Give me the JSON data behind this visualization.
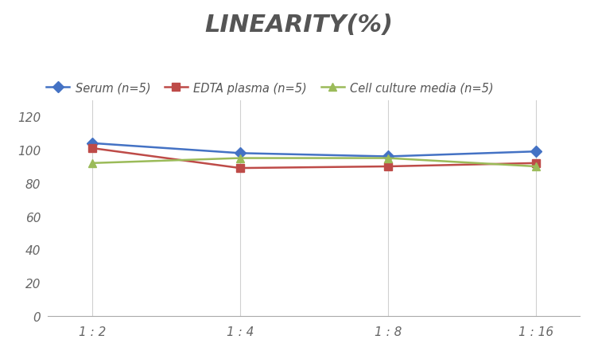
{
  "title": "LINEARITY(%)",
  "x_labels": [
    "1 : 2",
    "1 : 4",
    "1 : 8",
    "1 : 16"
  ],
  "series": [
    {
      "name": "Serum (n=5)",
      "values": [
        104,
        98,
        96,
        99
      ],
      "color": "#4472C4",
      "marker": "D",
      "marker_color": "#4472C4"
    },
    {
      "name": "EDTA plasma (n=5)",
      "values": [
        101,
        89,
        90,
        92
      ],
      "color": "#BE4B48",
      "marker": "s",
      "marker_color": "#BE4B48"
    },
    {
      "name": "Cell culture media (n=5)",
      "values": [
        92,
        95,
        95,
        90
      ],
      "color": "#9BBB59",
      "marker": "^",
      "marker_color": "#9BBB59"
    }
  ],
  "ylim": [
    0,
    130
  ],
  "yticks": [
    0,
    20,
    40,
    60,
    80,
    100,
    120
  ],
  "background_color": "#ffffff",
  "grid_color": "#d0d0d0",
  "title_fontsize": 22,
  "legend_fontsize": 10.5,
  "tick_fontsize": 11,
  "tick_color": "#666666"
}
